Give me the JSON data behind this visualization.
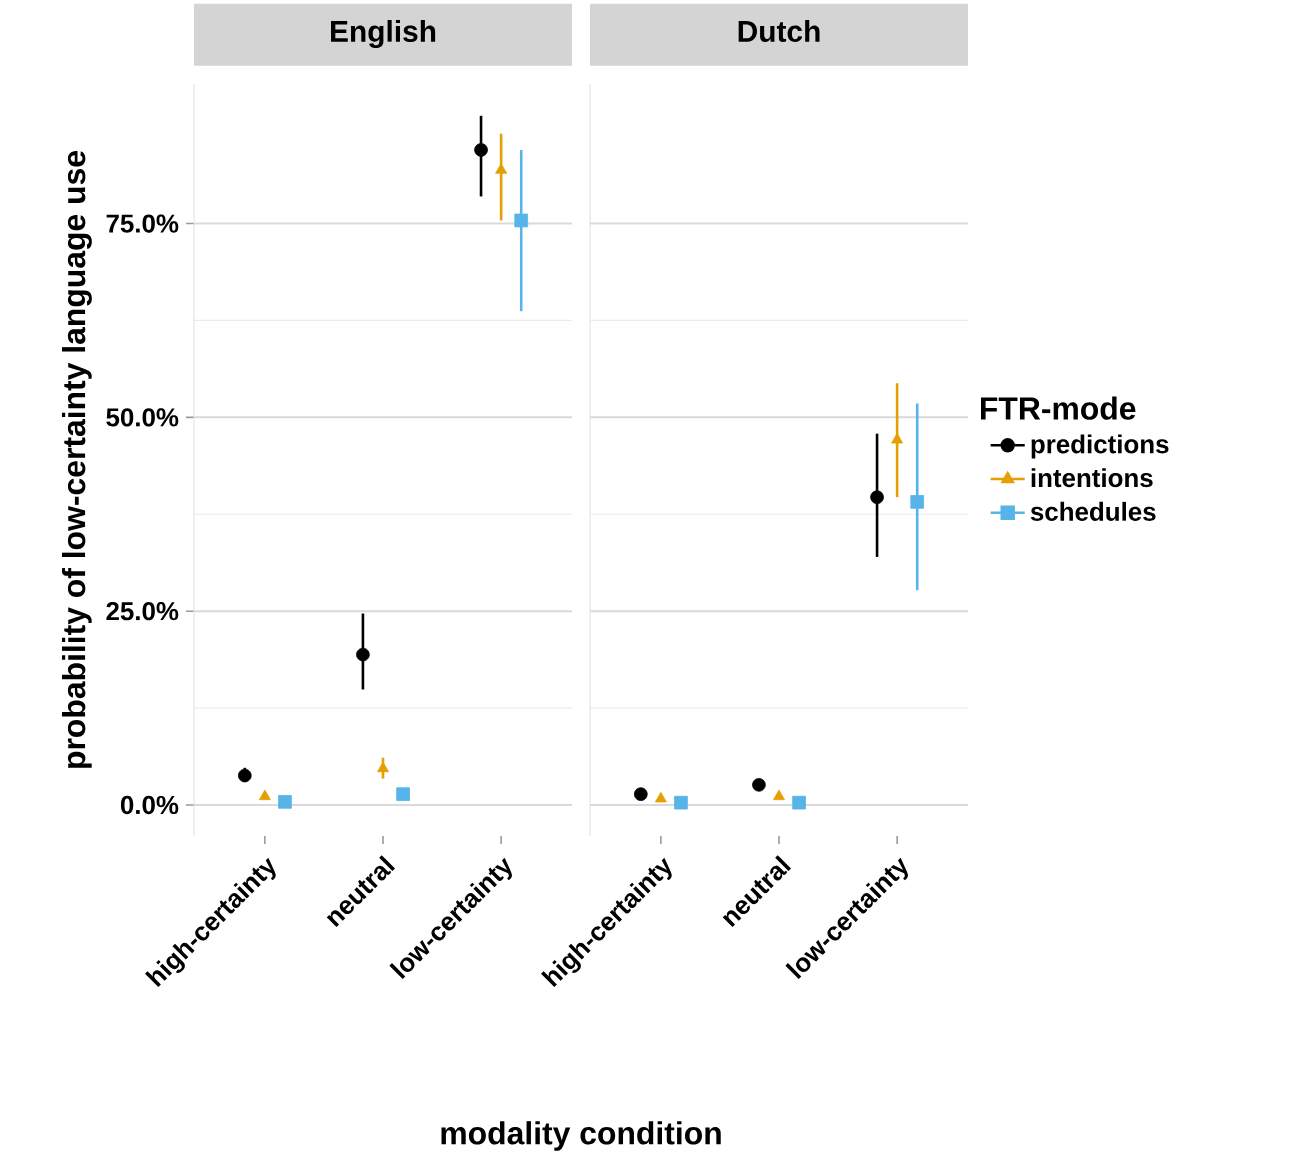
{
  "chart_data": [
    {
      "type": "scatter",
      "title": "English",
      "xlabel": "modality condition",
      "ylabel": "probability of low-certainty language use",
      "categories": [
        "high-certainty",
        "neutral",
        "low-certainty"
      ],
      "ylim": [
        -4,
        93
      ],
      "yticks": [
        {
          "value": 0,
          "label": "0.0%"
        },
        {
          "value": 25,
          "label": "25.0%"
        },
        {
          "value": 50,
          "label": "50.0%"
        },
        {
          "value": 75,
          "label": "75.0%"
        }
      ],
      "grid": "y",
      "series": [
        {
          "color": "#000000",
          "marker": "circle",
          "values": [
            3.8,
            19.4,
            84.5
          ],
          "errors": [
            [
              3.0,
              4.8
            ],
            [
              14.9,
              24.7
            ],
            [
              78.5,
              88.9
            ]
          ]
        },
        {
          "color": "#e69f00",
          "marker": "triangle",
          "values": [
            1.1,
            4.7,
            81.9
          ],
          "errors": [
            null,
            [
              3.4,
              6.1
            ],
            [
              75.4,
              86.6
            ]
          ]
        },
        {
          "color": "#56b4e9",
          "marker": "square",
          "values": [
            0.4,
            1.4,
            75.4
          ],
          "errors": [
            null,
            null,
            [
              63.7,
              84.5
            ]
          ]
        }
      ]
    },
    {
      "type": "scatter",
      "title": "Dutch",
      "categories": [
        "high-certainty",
        "neutral",
        "low-certainty"
      ],
      "ylim": [
        -4,
        93
      ],
      "yticks": [
        0,
        25,
        50,
        75
      ],
      "grid": "y",
      "tick_labels": "x",
      "legend": "right",
      "legend_title": "FTR-mode",
      "series": [
        {
          "name": "predictions",
          "color": "#000000",
          "marker": "circle",
          "values": [
            1.4,
            2.6,
            39.7
          ],
          "errors": [
            null,
            null,
            [
              32.0,
              47.9
            ]
          ]
        },
        {
          "name": "intentions",
          "color": "#e69f00",
          "marker": "triangle",
          "values": [
            0.8,
            1.1,
            47.1
          ],
          "errors": [
            null,
            null,
            [
              39.7,
              54.4
            ]
          ]
        },
        {
          "name": "schedules",
          "color": "#56b4e9",
          "marker": "square",
          "values": [
            0.3,
            0.3,
            39.1
          ],
          "errors": [
            null,
            null,
            [
              27.7,
              51.8
            ]
          ]
        }
      ]
    }
  ]
}
